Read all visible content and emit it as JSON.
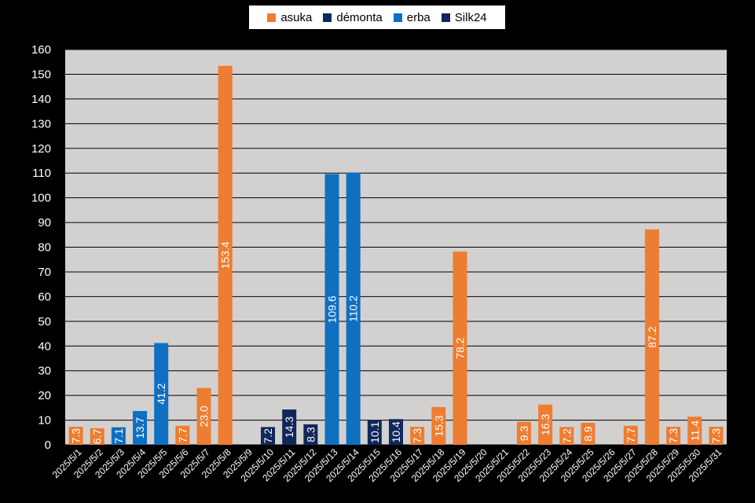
{
  "chart_data": {
    "type": "bar",
    "title": "",
    "xlabel": "",
    "ylabel": "",
    "ylim": [
      0,
      160
    ],
    "yticks": [
      0,
      10,
      20,
      30,
      40,
      50,
      60,
      70,
      80,
      90,
      100,
      110,
      120,
      130,
      140,
      150,
      160
    ],
    "grid": true,
    "legend_position": "top",
    "plot_background": "#d3d0d0",
    "series": [
      {
        "name": "asuka",
        "color": "#ed7d31"
      },
      {
        "name": "démonta",
        "color": "#0d2a5c"
      },
      {
        "name": "erba",
        "color": "#0f6fc1"
      },
      {
        "name": "Silk24",
        "color": "#10275a"
      }
    ],
    "categories": [
      "2025/5/1",
      "2025/5/2",
      "2025/5/3",
      "2025/5/4",
      "2025/5/5",
      "2025/5/6",
      "2025/5/7",
      "2025/5/8",
      "2025/5/9",
      "2025/5/10",
      "2025/5/11",
      "2025/5/12",
      "2025/5/13",
      "2025/5/14",
      "2025/5/15",
      "2025/5/16",
      "2025/5/17",
      "2025/5/18",
      "2025/5/19",
      "2025/5/20",
      "2025/5/21",
      "2025/5/22",
      "2025/5/23",
      "2025/5/24",
      "2025/5/25",
      "2025/5/26",
      "2025/5/27",
      "2025/5/28",
      "2025/5/29",
      "2025/5/30",
      "2025/5/31"
    ],
    "bars": [
      {
        "date": "2025/5/1",
        "series": "asuka",
        "value": 7.3,
        "label": "7.3"
      },
      {
        "date": "2025/5/2",
        "series": "asuka",
        "value": 6.7,
        "label": "6.7"
      },
      {
        "date": "2025/5/3",
        "series": "erba",
        "value": 7.1,
        "label": "7.1"
      },
      {
        "date": "2025/5/4",
        "series": "erba",
        "value": 13.7,
        "label": "13.7"
      },
      {
        "date": "2025/5/5",
        "series": "erba",
        "value": 41.2,
        "label": "41.2"
      },
      {
        "date": "2025/5/6",
        "series": "asuka",
        "value": 7.7,
        "label": "7.7"
      },
      {
        "date": "2025/5/7",
        "series": "asuka",
        "value": 23.0,
        "label": "23.0"
      },
      {
        "date": "2025/5/8",
        "series": "asuka",
        "value": 153.4,
        "label": "153.4"
      },
      {
        "date": "2025/5/10",
        "series": "Silk24",
        "value": 7.2,
        "label": "7.2"
      },
      {
        "date": "2025/5/11",
        "series": "Silk24",
        "value": 14.3,
        "label": "14.3"
      },
      {
        "date": "2025/5/12",
        "series": "Silk24",
        "value": 8.3,
        "label": "8.3"
      },
      {
        "date": "2025/5/13",
        "series": "erba",
        "value": 109.6,
        "label": "109.6"
      },
      {
        "date": "2025/5/14",
        "series": "erba",
        "value": 110.2,
        "label": "110.2"
      },
      {
        "date": "2025/5/15",
        "series": "Silk24",
        "value": 10.1,
        "label": "10.1"
      },
      {
        "date": "2025/5/16",
        "series": "Silk24",
        "value": 10.4,
        "label": "10.4"
      },
      {
        "date": "2025/5/17",
        "series": "asuka",
        "value": 7.3,
        "label": "7.3"
      },
      {
        "date": "2025/5/18",
        "series": "asuka",
        "value": 15.3,
        "label": "15.3"
      },
      {
        "date": "2025/5/19",
        "series": "asuka",
        "value": 78.2,
        "label": "78.2"
      },
      {
        "date": "2025/5/22",
        "series": "asuka",
        "value": 9.3,
        "label": "9.3"
      },
      {
        "date": "2025/5/23",
        "series": "asuka",
        "value": 16.3,
        "label": "16.3"
      },
      {
        "date": "2025/5/24",
        "series": "asuka",
        "value": 7.2,
        "label": "7.2"
      },
      {
        "date": "2025/5/25",
        "series": "asuka",
        "value": 8.9,
        "label": "8.9"
      },
      {
        "date": "2025/5/27",
        "series": "asuka",
        "value": 7.7,
        "label": "7.7"
      },
      {
        "date": "2025/5/28",
        "series": "asuka",
        "value": 87.2,
        "label": "87.2"
      },
      {
        "date": "2025/5/29",
        "series": "asuka",
        "value": 7.3,
        "label": "7.3"
      },
      {
        "date": "2025/5/30",
        "series": "asuka",
        "value": 11.4,
        "label": "11.4"
      },
      {
        "date": "2025/5/31",
        "series": "asuka",
        "value": 7.3,
        "label": "7.3"
      }
    ]
  }
}
